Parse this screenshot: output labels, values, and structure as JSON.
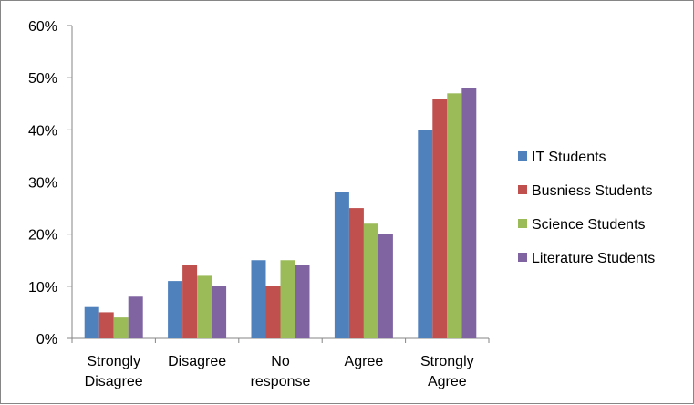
{
  "chart_data": {
    "type": "bar",
    "categories": [
      [
        "Strongly",
        "Disagree"
      ],
      [
        "Disagree"
      ],
      [
        "No",
        "response"
      ],
      [
        "Agree"
      ],
      [
        "Strongly",
        "Agree"
      ]
    ],
    "series": [
      {
        "name": "IT Students",
        "color": "#4F81BD",
        "values": [
          6,
          11,
          15,
          28,
          40
        ]
      },
      {
        "name": "Busniess Students",
        "color": "#C0504D",
        "values": [
          5,
          14,
          10,
          25,
          46
        ]
      },
      {
        "name": "Science Students",
        "color": "#9BBB59",
        "values": [
          4,
          12,
          15,
          22,
          47
        ]
      },
      {
        "name": "Literature Students",
        "color": "#8064A2",
        "values": [
          8,
          10,
          14,
          20,
          48
        ]
      }
    ],
    "ylim": [
      0,
      60
    ],
    "yticks": [
      "0%",
      "10%",
      "20%",
      "30%",
      "40%",
      "50%",
      "60%"
    ],
    "grid": false,
    "legend_position": "right",
    "title": "",
    "xlabel": "",
    "ylabel": ""
  }
}
